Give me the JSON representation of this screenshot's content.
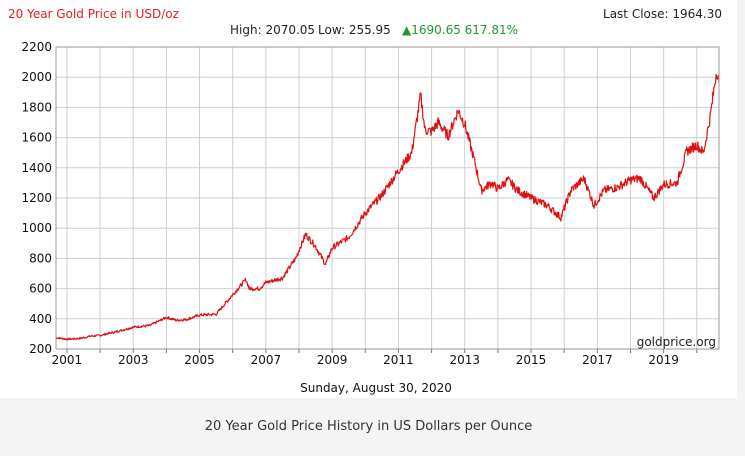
{
  "header": {
    "title": "20 Year Gold Price in USD/oz",
    "high_label": "High: 2070.05",
    "low_label": "Low: 255.95",
    "change_label": "▲1690.65 617.81%",
    "last_close_label": "Last Close: 1964.30"
  },
  "date_label": "Sunday, August 30, 2020",
  "watermark": "goldprice.org",
  "caption": "20 Year Gold Price History in US Dollars per Ounce",
  "colors": {
    "line": "#e01010",
    "title": "#e02020",
    "up": "#1c9a2a",
    "grid": "#cfcfcf"
  },
  "chart_data": {
    "type": "line",
    "title": "20 Year Gold Price in USD/oz",
    "xlabel": "",
    "ylabel": "",
    "xlim": [
      2000.67,
      2020.67
    ],
    "ylim": [
      200,
      2200
    ],
    "grid": true,
    "y_ticks": [
      200,
      400,
      600,
      800,
      1000,
      1200,
      1400,
      1600,
      1800,
      2000,
      2200
    ],
    "x_ticks": [
      2001,
      2003,
      2005,
      2007,
      2009,
      2011,
      2013,
      2015,
      2017,
      2019
    ],
    "x_minor_ticks": [
      2001,
      2002,
      2003,
      2004,
      2005,
      2006,
      2007,
      2008,
      2009,
      2010,
      2011,
      2012,
      2013,
      2014,
      2015,
      2016,
      2017,
      2018,
      2019,
      2020
    ],
    "series": [
      {
        "name": "",
        "x": [
          2000.67,
          2001.0,
          2001.4,
          2001.7,
          2002.0,
          2002.5,
          2003.0,
          2003.5,
          2004.0,
          2004.3,
          2004.6,
          2005.0,
          2005.5,
          2006.0,
          2006.4,
          2006.5,
          2006.8,
          2007.0,
          2007.5,
          2007.9,
          2008.2,
          2008.5,
          2008.8,
          2009.0,
          2009.5,
          2010.0,
          2010.5,
          2011.0,
          2011.4,
          2011.67,
          2011.8,
          2012.0,
          2012.2,
          2012.5,
          2012.8,
          2013.0,
          2013.3,
          2013.5,
          2013.8,
          2014.0,
          2014.3,
          2014.6,
          2015.0,
          2015.5,
          2015.9,
          2016.2,
          2016.6,
          2016.9,
          2017.2,
          2017.6,
          2018.0,
          2018.3,
          2018.7,
          2019.0,
          2019.4,
          2019.7,
          2020.0,
          2020.2,
          2020.4,
          2020.6,
          2020.67
        ],
        "values": [
          275,
          265,
          270,
          285,
          290,
          315,
          345,
          355,
          410,
          390,
          395,
          425,
          430,
          560,
          660,
          600,
          600,
          640,
          670,
          800,
          960,
          880,
          760,
          870,
          940,
          1100,
          1220,
          1380,
          1500,
          1880,
          1650,
          1640,
          1700,
          1610,
          1780,
          1690,
          1440,
          1250,
          1300,
          1260,
          1320,
          1250,
          1200,
          1150,
          1070,
          1250,
          1330,
          1150,
          1250,
          1270,
          1320,
          1330,
          1200,
          1290,
          1300,
          1510,
          1550,
          1500,
          1730,
          2050,
          1964
        ]
      }
    ]
  }
}
